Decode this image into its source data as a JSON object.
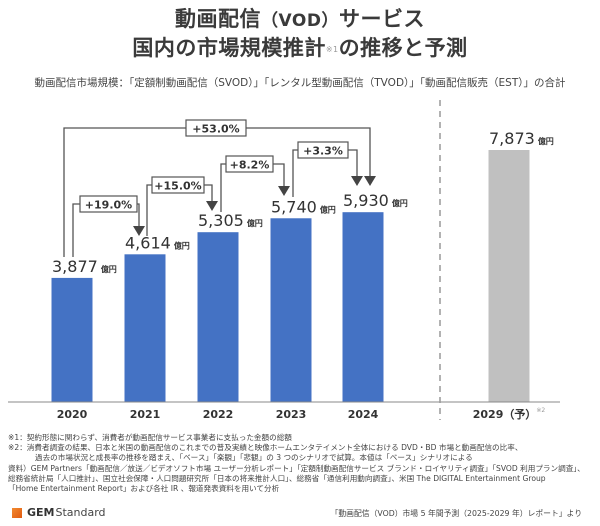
{
  "title": {
    "line1_a": "動画配信",
    "line1_b": "（VOD）",
    "line1_c": "サービス",
    "line2_a": "国内の市場規模推計",
    "line2_note": "※1",
    "line2_b": "の推移と予測"
  },
  "subtitle": "動画配信市場規模：「定額制動画配信（SVOD）」「レンタル型動画配信（TVOD）」「動画配信販売（EST）」の合計",
  "colors": {
    "actual_bar": "#4472C4",
    "forecast_bar": "#C0C0C0",
    "connector": "#555555",
    "text": "#333333"
  },
  "chart_data": {
    "type": "bar",
    "title": "動画配信（VOD）サービス 国内の市場規模推計の推移と予測",
    "xlabel": "",
    "ylabel": "",
    "unit": "億円",
    "categories": [
      "2020",
      "2021",
      "2022",
      "2023",
      "2024",
      "2029（予）"
    ],
    "category_notes": [
      "",
      "",
      "",
      "",
      "",
      "※2"
    ],
    "values": [
      3877,
      4614,
      5305,
      5740,
      5930,
      7873
    ],
    "value_labels": [
      "3,877",
      "4,614",
      "5,305",
      "5,740",
      "5,930",
      "7,873"
    ],
    "forecast": [
      false,
      false,
      false,
      false,
      false,
      true
    ],
    "ylim": [
      0,
      8500
    ],
    "grid": false,
    "growth_annotations": [
      {
        "from": "2020",
        "to": "2021",
        "label": "+19.0%"
      },
      {
        "from": "2021",
        "to": "2022",
        "label": "+15.0%"
      },
      {
        "from": "2022",
        "to": "2023",
        "label": "+8.2%"
      },
      {
        "from": "2023",
        "to": "2024",
        "label": "+3.3%"
      },
      {
        "from": "2020",
        "to": "2024",
        "label": "+53.0%"
      }
    ]
  },
  "notes": {
    "n1_label": "※1：",
    "n1": "契約形態に関わらず、消費者が動画配信サービス事業者に支払った金額の総額",
    "n2_label": "※2：",
    "n2_line1": "消費者調査の結果、日本と米国の動画配信のこれまでの普及実績と映像ホームエンタテイメント全体における DVD・BD 市場と動画配信の比率、",
    "n2_line2": "過去の市場状況と成長率の推移を踏まえ、「ベース」「楽観」「悲観」の 3 つのシナリオで試算。本値は「ベース」シナリオによる"
  },
  "source": {
    "line1": "資料）GEM Partners「動画配信／放送／ビデオソフト市場 ユーザー分析レポート」「定額制動画配信サービス ブランド・ロイヤリティ調査」「SVOD 利用プラン調査」、",
    "line2": "総務省統計局「人口推計」、国立社会保障・人口問題研究所「日本の将来推計人口」、総務省「通信利用動向調査」、米国 The DIGITAL Entertainment Group",
    "line3": "「Home Entertainment Report」および各社 IR 、報道発表資料を用いて分析"
  },
  "footer": {
    "logo_bold": "GEM",
    "logo_rest": "Standard",
    "report": "「動画配信（VOD）市場 5 年間予測（2025-2029 年）レポート」より"
  }
}
